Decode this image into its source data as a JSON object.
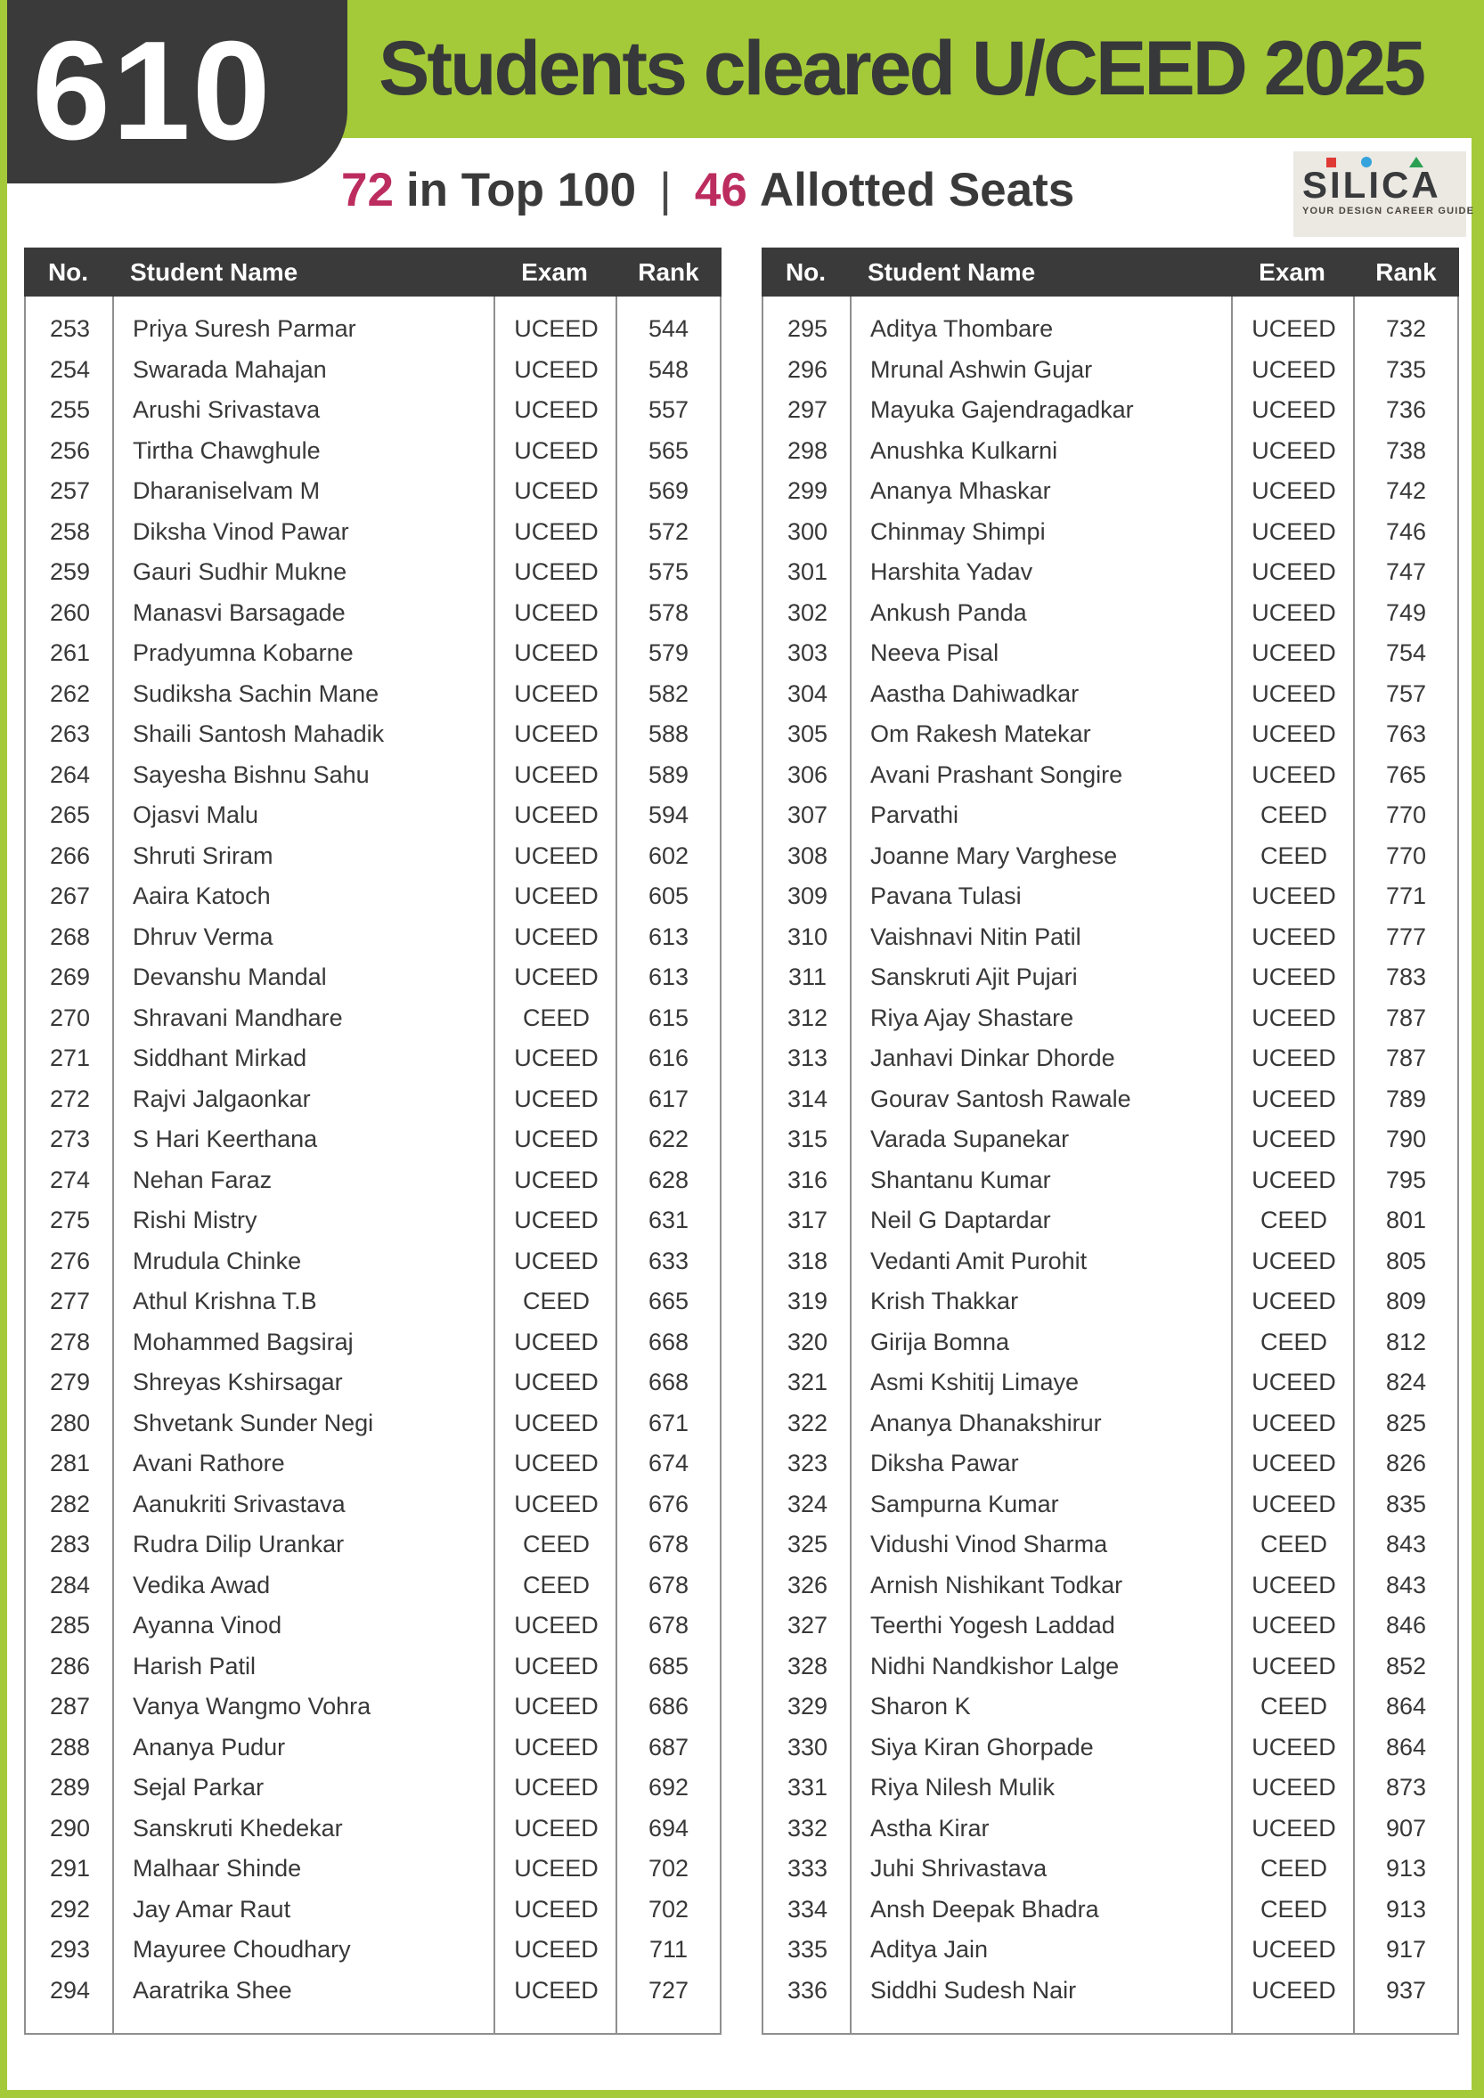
{
  "header": {
    "badge": "610",
    "title": "Students cleared U/CEED 2025",
    "stats": [
      {
        "value": "72",
        "label": "in Top 100"
      },
      {
        "value": "46",
        "label": "Allotted Seats"
      }
    ],
    "stats_separator": "|"
  },
  "logo": {
    "text": "SILICA",
    "tagline": "YOUR DESIGN CAREER GUIDE"
  },
  "columns": [
    "No.",
    "Student Name",
    "Exam",
    "Rank"
  ],
  "tables": [
    {
      "id": "table-left",
      "rows": [
        [
          253,
          "Priya Suresh Parmar",
          "UCEED",
          544
        ],
        [
          254,
          "Swarada Mahajan",
          "UCEED",
          548
        ],
        [
          255,
          "Arushi Srivastava",
          "UCEED",
          557
        ],
        [
          256,
          "Tirtha Chawghule",
          "UCEED",
          565
        ],
        [
          257,
          "Dharaniselvam M",
          "UCEED",
          569
        ],
        [
          258,
          "Diksha Vinod Pawar",
          "UCEED",
          572
        ],
        [
          259,
          "Gauri Sudhir Mukne",
          "UCEED",
          575
        ],
        [
          260,
          "Manasvi Barsagade",
          "UCEED",
          578
        ],
        [
          261,
          "Pradyumna Kobarne",
          "UCEED",
          579
        ],
        [
          262,
          "Sudiksha Sachin Mane",
          "UCEED",
          582
        ],
        [
          263,
          "Shaili Santosh Mahadik",
          "UCEED",
          588
        ],
        [
          264,
          "Sayesha Bishnu Sahu",
          "UCEED",
          589
        ],
        [
          265,
          "Ojasvi Malu",
          "UCEED",
          594
        ],
        [
          266,
          "Shruti Sriram",
          "UCEED",
          602
        ],
        [
          267,
          "Aaira Katoch",
          "UCEED",
          605
        ],
        [
          268,
          "Dhruv Verma",
          "UCEED",
          613
        ],
        [
          269,
          "Devanshu Mandal",
          "UCEED",
          613
        ],
        [
          270,
          "Shravani Mandhare",
          "CEED",
          615
        ],
        [
          271,
          "Siddhant Mirkad",
          "UCEED",
          616
        ],
        [
          272,
          "Rajvi Jalgaonkar",
          "UCEED",
          617
        ],
        [
          273,
          "S Hari Keerthana",
          "UCEED",
          622
        ],
        [
          274,
          "Nehan Faraz",
          "UCEED",
          628
        ],
        [
          275,
          "Rishi Mistry",
          "UCEED",
          631
        ],
        [
          276,
          "Mrudula Chinke",
          "UCEED",
          633
        ],
        [
          277,
          "Athul Krishna T.B",
          "CEED",
          665
        ],
        [
          278,
          "Mohammed Bagsiraj",
          "UCEED",
          668
        ],
        [
          279,
          "Shreyas Kshirsagar",
          "UCEED",
          668
        ],
        [
          280,
          "Shvetank Sunder Negi",
          "UCEED",
          671
        ],
        [
          281,
          "Avani Rathore",
          "UCEED",
          674
        ],
        [
          282,
          "Aanukriti Srivastava",
          "UCEED",
          676
        ],
        [
          283,
          "Rudra Dilip Urankar",
          "CEED",
          678
        ],
        [
          284,
          "Vedika Awad",
          "CEED",
          678
        ],
        [
          285,
          "Ayanna Vinod",
          "UCEED",
          678
        ],
        [
          286,
          "Harish Patil",
          "UCEED",
          685
        ],
        [
          287,
          "Vanya Wangmo Vohra",
          "UCEED",
          686
        ],
        [
          288,
          "Ananya Pudur",
          "UCEED",
          687
        ],
        [
          289,
          "Sejal Parkar",
          "UCEED",
          692
        ],
        [
          290,
          "Sanskruti Khedekar",
          "UCEED",
          694
        ],
        [
          291,
          "Malhaar Shinde",
          "UCEED",
          702
        ],
        [
          292,
          "Jay Amar Raut",
          "UCEED",
          702
        ],
        [
          293,
          "Mayuree Choudhary",
          "UCEED",
          711
        ],
        [
          294,
          "Aaratrika Shee",
          "UCEED",
          727
        ]
      ]
    },
    {
      "id": "table-right",
      "rows": [
        [
          295,
          "Aditya Thombare",
          "UCEED",
          732
        ],
        [
          296,
          "Mrunal Ashwin Gujar",
          "UCEED",
          735
        ],
        [
          297,
          "Mayuka Gajendragadkar",
          "UCEED",
          736
        ],
        [
          298,
          "Anushka Kulkarni",
          "UCEED",
          738
        ],
        [
          299,
          "Ananya Mhaskar",
          "UCEED",
          742
        ],
        [
          300,
          "Chinmay Shimpi",
          "UCEED",
          746
        ],
        [
          301,
          "Harshita Yadav",
          "UCEED",
          747
        ],
        [
          302,
          "Ankush Panda",
          "UCEED",
          749
        ],
        [
          303,
          "Neeva Pisal",
          "UCEED",
          754
        ],
        [
          304,
          "Aastha Dahiwadkar",
          "UCEED",
          757
        ],
        [
          305,
          "Om Rakesh Matekar",
          "UCEED",
          763
        ],
        [
          306,
          "Avani Prashant Songire",
          "UCEED",
          765
        ],
        [
          307,
          "Parvathi",
          "CEED",
          770
        ],
        [
          308,
          "Joanne Mary Varghese",
          "CEED",
          770
        ],
        [
          309,
          "Pavana Tulasi",
          "UCEED",
          771
        ],
        [
          310,
          "Vaishnavi Nitin Patil",
          "UCEED",
          777
        ],
        [
          311,
          "Sanskruti Ajit Pujari",
          "UCEED",
          783
        ],
        [
          312,
          "Riya Ajay Shastare",
          "UCEED",
          787
        ],
        [
          313,
          "Janhavi Dinkar Dhorde",
          "UCEED",
          787
        ],
        [
          314,
          "Gourav Santosh Rawale",
          "UCEED",
          789
        ],
        [
          315,
          "Varada Supanekar",
          "UCEED",
          790
        ],
        [
          316,
          "Shantanu Kumar",
          "UCEED",
          795
        ],
        [
          317,
          "Neil G Daptardar",
          "CEED",
          801
        ],
        [
          318,
          "Vedanti Amit Purohit",
          "UCEED",
          805
        ],
        [
          319,
          "Krish Thakkar",
          "UCEED",
          809
        ],
        [
          320,
          "Girija Bomna",
          "CEED",
          812
        ],
        [
          321,
          "Asmi Kshitij Limaye",
          "UCEED",
          824
        ],
        [
          322,
          "Ananya Dhanakshirur",
          "UCEED",
          825
        ],
        [
          323,
          "Diksha Pawar",
          "UCEED",
          826
        ],
        [
          324,
          "Sampurna Kumar",
          "UCEED",
          835
        ],
        [
          325,
          "Vidushi Vinod Sharma",
          "CEED",
          843
        ],
        [
          326,
          "Arnish Nishikant Todkar",
          "UCEED",
          843
        ],
        [
          327,
          "Teerthi Yogesh Laddad",
          "UCEED",
          846
        ],
        [
          328,
          "Nidhi Nandkishor Lalge",
          "UCEED",
          852
        ],
        [
          329,
          "Sharon  K",
          "CEED",
          864
        ],
        [
          330,
          "Siya Kiran Ghorpade",
          "UCEED",
          864
        ],
        [
          331,
          "Riya Nilesh Mulik",
          "UCEED",
          873
        ],
        [
          332,
          "Astha Kirar",
          "UCEED",
          907
        ],
        [
          333,
          "Juhi Shrivastava",
          "CEED",
          913
        ],
        [
          334,
          "Ansh Deepak Bhadra",
          "CEED",
          913
        ],
        [
          335,
          "Aditya Jain",
          "UCEED",
          917
        ],
        [
          336,
          "Siddhi Sudesh Nair",
          "UCEED",
          937
        ]
      ]
    }
  ],
  "colors": {
    "green": "#a4ca39",
    "dark": "#3a3a3b",
    "accent": "#bc2c5e",
    "border": "#8f8f8f",
    "logo_red": "#e03a36",
    "logo_blue": "#35a3dc",
    "logo_green": "#2aa052",
    "logo_bg": "#ece9e3"
  }
}
